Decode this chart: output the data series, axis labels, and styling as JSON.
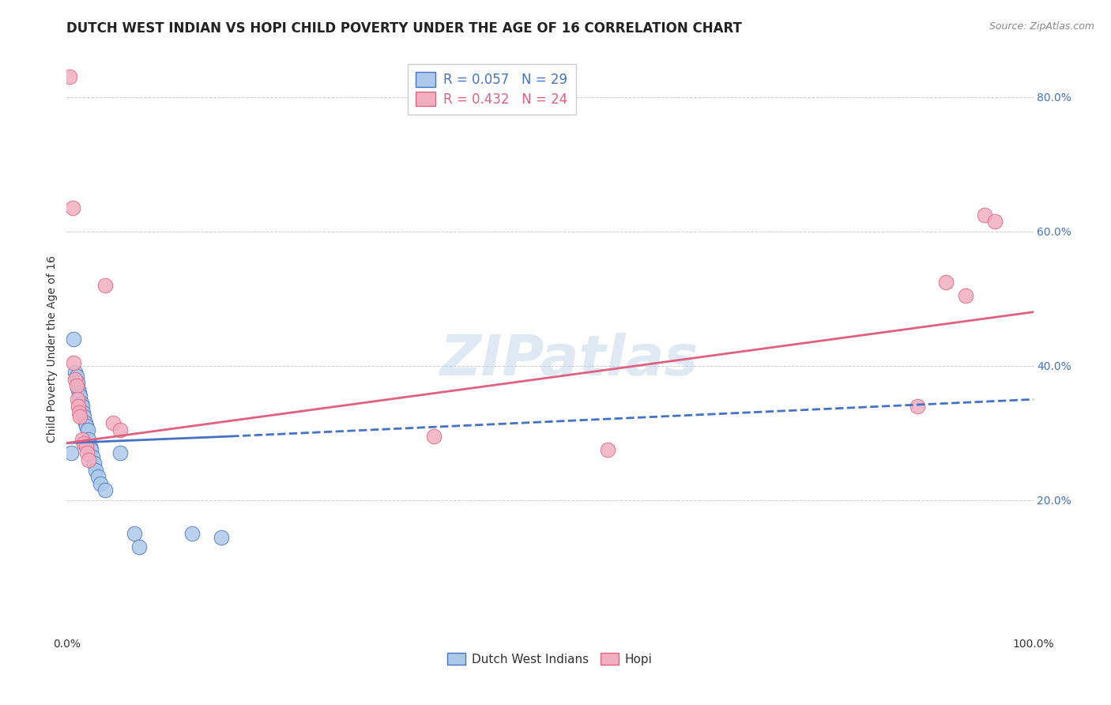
{
  "title": "DUTCH WEST INDIAN VS HOPI CHILD POVERTY UNDER THE AGE OF 16 CORRELATION CHART",
  "source": "Source: ZipAtlas.com",
  "ylabel": "Child Poverty Under the Age of 16",
  "watermark": "ZIPatlas",
  "blue_label": "Dutch West Indians",
  "pink_label": "Hopi",
  "blue_R": "R = 0.057",
  "blue_N": "N = 29",
  "pink_R": "R = 0.432",
  "pink_N": "N = 24",
  "xlim": [
    0,
    1.0
  ],
  "ylim": [
    0,
    0.85
  ],
  "xticks": [
    0.0,
    0.1,
    0.2,
    0.3,
    0.4,
    0.5,
    0.6,
    0.7,
    0.8,
    0.9,
    1.0
  ],
  "yticks": [
    0.0,
    0.2,
    0.4,
    0.6,
    0.8
  ],
  "ytick_labels": [
    "",
    "20.0%",
    "40.0%",
    "60.0%",
    "80.0%"
  ],
  "xtick_labels": [
    "0.0%",
    "",
    "",
    "",
    "",
    "",
    "",
    "",
    "",
    "",
    "100.0%"
  ],
  "blue_points": [
    [
      0.005,
      0.27
    ],
    [
      0.007,
      0.44
    ],
    [
      0.009,
      0.39
    ],
    [
      0.01,
      0.385
    ],
    [
      0.011,
      0.375
    ],
    [
      0.012,
      0.365
    ],
    [
      0.013,
      0.36
    ],
    [
      0.014,
      0.355
    ],
    [
      0.015,
      0.345
    ],
    [
      0.016,
      0.34
    ],
    [
      0.017,
      0.33
    ],
    [
      0.018,
      0.325
    ],
    [
      0.019,
      0.315
    ],
    [
      0.02,
      0.31
    ],
    [
      0.022,
      0.305
    ],
    [
      0.023,
      0.29
    ],
    [
      0.024,
      0.28
    ],
    [
      0.025,
      0.275
    ],
    [
      0.027,
      0.265
    ],
    [
      0.028,
      0.255
    ],
    [
      0.03,
      0.245
    ],
    [
      0.032,
      0.235
    ],
    [
      0.035,
      0.225
    ],
    [
      0.04,
      0.215
    ],
    [
      0.055,
      0.27
    ],
    [
      0.07,
      0.15
    ],
    [
      0.075,
      0.13
    ],
    [
      0.13,
      0.15
    ],
    [
      0.16,
      0.145
    ]
  ],
  "pink_points": [
    [
      0.003,
      0.83
    ],
    [
      0.006,
      0.635
    ],
    [
      0.007,
      0.405
    ],
    [
      0.009,
      0.38
    ],
    [
      0.01,
      0.37
    ],
    [
      0.011,
      0.35
    ],
    [
      0.012,
      0.34
    ],
    [
      0.013,
      0.33
    ],
    [
      0.014,
      0.325
    ],
    [
      0.016,
      0.29
    ],
    [
      0.018,
      0.285
    ],
    [
      0.02,
      0.28
    ],
    [
      0.021,
      0.27
    ],
    [
      0.023,
      0.26
    ],
    [
      0.04,
      0.52
    ],
    [
      0.048,
      0.315
    ],
    [
      0.055,
      0.305
    ],
    [
      0.38,
      0.295
    ],
    [
      0.56,
      0.275
    ],
    [
      0.88,
      0.34
    ],
    [
      0.91,
      0.525
    ],
    [
      0.93,
      0.505
    ],
    [
      0.95,
      0.625
    ],
    [
      0.96,
      0.615
    ]
  ],
  "blue_line_solid": [
    [
      0.0,
      0.285
    ],
    [
      0.17,
      0.295
    ]
  ],
  "blue_line_dashed": [
    [
      0.17,
      0.295
    ],
    [
      1.0,
      0.35
    ]
  ],
  "pink_line": [
    [
      0.0,
      0.285
    ],
    [
      1.0,
      0.48
    ]
  ],
  "blue_scatter_color": "#adc9ea",
  "pink_scatter_color": "#f2afc0",
  "blue_line_color": "#4472c4",
  "pink_line_color": "#e06080",
  "background_color": "#ffffff",
  "grid_color": "#cccccc",
  "title_fontsize": 12,
  "axis_label_fontsize": 10,
  "tick_fontsize": 10,
  "legend_fontsize": 11,
  "watermark_fontsize": 52,
  "watermark_color": "#b8cfe8",
  "watermark_alpha": 0.45,
  "right_tick_color": "#4472c4"
}
